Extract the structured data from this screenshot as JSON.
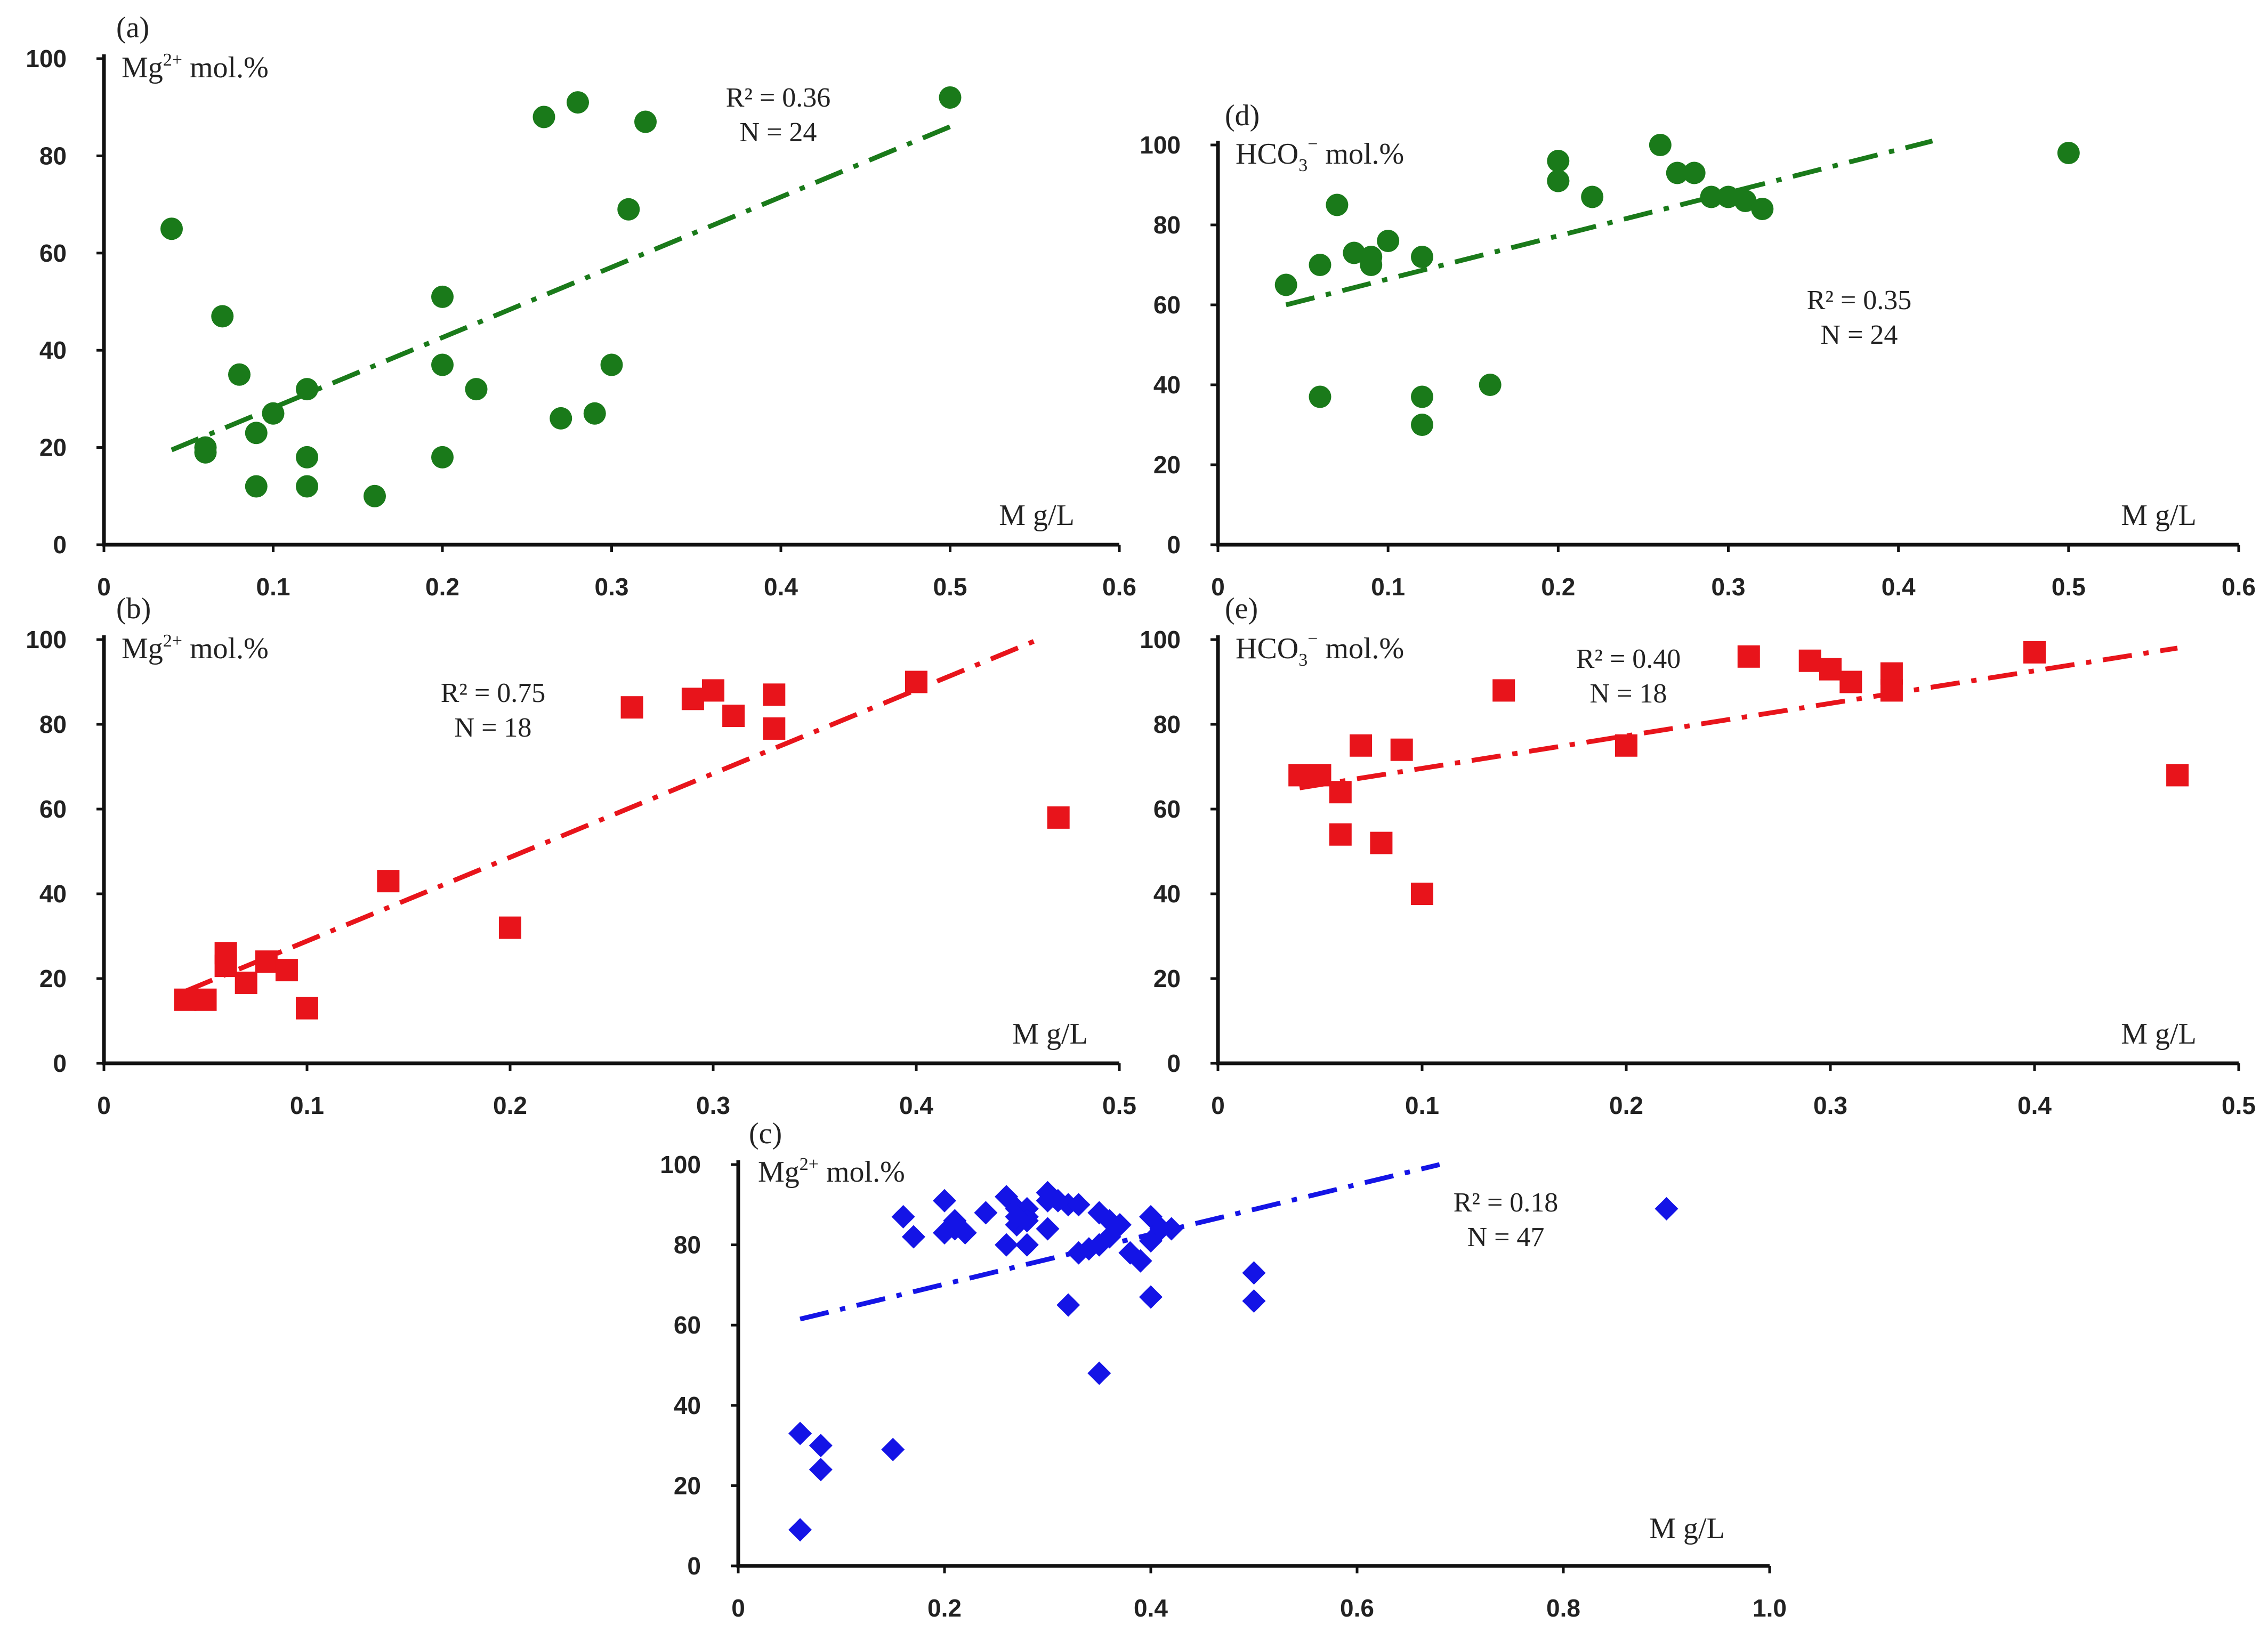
{
  "chart_data": [
    {
      "id": "a",
      "type": "scatter",
      "panel_label": "(a)",
      "ylabel": {
        "main": "Mg",
        "sup": "2+",
        "rest": " mol.%"
      },
      "xlabel": "M g/L",
      "xlim": [
        0,
        0.6
      ],
      "ylim": [
        0,
        100
      ],
      "xticks": [
        "0",
        "0.1",
        "0.2",
        "0.3",
        "0.4",
        "0.5",
        "0.6"
      ],
      "yticks": [
        "0",
        "20",
        "40",
        "60",
        "80",
        "100"
      ],
      "marker": "circle",
      "color": "#1a7a1a",
      "r2_text": "R² = 0.36",
      "n_text": "N = 24",
      "trend": {
        "x": [
          0.04,
          0.5
        ],
        "y": [
          19.5,
          86
        ]
      },
      "x": [
        0.04,
        0.06,
        0.06,
        0.07,
        0.08,
        0.09,
        0.09,
        0.1,
        0.12,
        0.12,
        0.12,
        0.16,
        0.2,
        0.2,
        0.2,
        0.22,
        0.26,
        0.27,
        0.28,
        0.29,
        0.3,
        0.31,
        0.32,
        0.5
      ],
      "y": [
        65,
        19,
        20,
        47,
        35,
        12,
        23,
        27,
        32,
        18,
        12,
        10,
        51,
        37,
        18,
        32,
        88,
        26,
        91,
        27,
        37,
        69,
        87,
        92
      ]
    },
    {
      "id": "b",
      "type": "scatter",
      "panel_label": "(b)",
      "ylabel": {
        "main": "Mg",
        "sup": "2+",
        "rest": " mol.%"
      },
      "xlabel": "M g/L",
      "xlim": [
        0,
        0.5
      ],
      "ylim": [
        0,
        100
      ],
      "xticks": [
        "0",
        "0.1",
        "0.2",
        "0.3",
        "0.4",
        "0.5"
      ],
      "yticks": [
        "0",
        "20",
        "40",
        "60",
        "80",
        "100"
      ],
      "marker": "square",
      "color": "#e8141b",
      "r2_text": "R² = 0.75",
      "n_text": "N = 18",
      "trend": {
        "x": [
          0.04,
          0.46
        ],
        "y": [
          17,
          100
        ]
      },
      "x": [
        0.04,
        0.05,
        0.06,
        0.06,
        0.07,
        0.08,
        0.09,
        0.1,
        0.14,
        0.2,
        0.26,
        0.29,
        0.3,
        0.31,
        0.33,
        0.33,
        0.4,
        0.47
      ],
      "y": [
        15,
        15,
        26,
        23,
        19,
        24,
        22,
        13,
        43,
        32,
        84,
        86,
        88,
        82,
        87,
        79,
        90,
        58
      ]
    },
    {
      "id": "c",
      "type": "scatter",
      "panel_label": "(c)",
      "ylabel": {
        "main": "Mg",
        "sup": "2+",
        "rest": " mol.%"
      },
      "xlabel": "M g/L",
      "xlim": [
        0,
        1.0
      ],
      "ylim": [
        0,
        100
      ],
      "xticks": [
        "0",
        "0.2",
        "0.4",
        "0.6",
        "0.8",
        "1.0"
      ],
      "yticks": [
        "0",
        "20",
        "40",
        "60",
        "80",
        "100"
      ],
      "marker": "diamond",
      "color": "#1414e6",
      "r2_text": "R² = 0.18",
      "n_text": "N = 47",
      "trend": {
        "x": [
          0.06,
          0.68
        ],
        "y": [
          61.5,
          100
        ]
      },
      "x": [
        0.06,
        0.06,
        0.08,
        0.08,
        0.15,
        0.16,
        0.17,
        0.2,
        0.2,
        0.21,
        0.21,
        0.22,
        0.24,
        0.26,
        0.26,
        0.27,
        0.27,
        0.28,
        0.28,
        0.28,
        0.3,
        0.3,
        0.31,
        0.32,
        0.32,
        0.33,
        0.33,
        0.34,
        0.35,
        0.35,
        0.35,
        0.36,
        0.36,
        0.37,
        0.38,
        0.39,
        0.4,
        0.4,
        0.4,
        0.41,
        0.42,
        0.5,
        0.5,
        0.9,
        0.28,
        0.3,
        0.27
      ],
      "y": [
        33,
        9,
        30,
        24,
        29,
        87,
        82,
        91,
        83,
        86,
        84,
        83,
        88,
        92,
        80,
        89,
        85,
        87,
        80,
        89,
        93,
        84,
        91,
        90,
        65,
        78,
        90,
        79,
        88,
        80,
        48,
        82,
        86,
        85,
        78,
        76,
        87,
        81,
        67,
        84,
        84,
        73,
        66,
        89,
        86,
        91,
        87
      ]
    },
    {
      "id": "d",
      "type": "scatter",
      "panel_label": "(d)",
      "ylabel": {
        "main": "HCO",
        "sub": "3",
        "sup": "−",
        "rest": " mol.%"
      },
      "xlabel": "M g/L",
      "xlim": [
        0,
        0.6
      ],
      "ylim": [
        0,
        100
      ],
      "xticks": [
        "0",
        "0.1",
        "0.2",
        "0.3",
        "0.4",
        "0.5",
        "0.6"
      ],
      "yticks": [
        "0",
        "20",
        "40",
        "60",
        "80",
        "100"
      ],
      "marker": "circle",
      "color": "#1a7a1a",
      "r2_text": "R² = 0.35",
      "n_text": "N = 24",
      "trend": {
        "x": [
          0.04,
          0.42
        ],
        "y": [
          60,
          101
        ]
      },
      "x": [
        0.04,
        0.06,
        0.06,
        0.07,
        0.08,
        0.09,
        0.09,
        0.1,
        0.12,
        0.12,
        0.12,
        0.16,
        0.2,
        0.2,
        0.2,
        0.22,
        0.26,
        0.27,
        0.28,
        0.29,
        0.3,
        0.31,
        0.32,
        0.5
      ],
      "y": [
        65,
        70,
        37,
        85,
        73,
        72,
        70,
        76,
        72,
        37,
        30,
        40,
        96,
        91,
        91,
        87,
        100,
        93,
        93,
        87,
        87,
        86,
        84,
        98
      ]
    },
    {
      "id": "e",
      "type": "scatter",
      "panel_label": "(e)",
      "ylabel": {
        "main": "HCO",
        "sub": "3",
        "sup": "−",
        "rest": " mol.%"
      },
      "xlabel": "M g/L",
      "xlim": [
        0,
        0.5
      ],
      "ylim": [
        0,
        100
      ],
      "xticks": [
        "0",
        "0.1",
        "0.2",
        "0.3",
        "0.4",
        "0.5"
      ],
      "yticks": [
        "0",
        "20",
        "40",
        "60",
        "80",
        "100"
      ],
      "marker": "square",
      "color": "#e8141b",
      "r2_text": "R² = 0.40",
      "n_text": "N = 18",
      "trend": {
        "x": [
          0.04,
          0.47
        ],
        "y": [
          65,
          98
        ]
      },
      "x": [
        0.04,
        0.05,
        0.06,
        0.06,
        0.07,
        0.08,
        0.09,
        0.1,
        0.14,
        0.2,
        0.26,
        0.29,
        0.3,
        0.31,
        0.33,
        0.33,
        0.4,
        0.47
      ],
      "y": [
        68,
        68,
        64,
        54,
        75,
        52,
        74,
        40,
        88,
        75,
        96,
        95,
        93,
        90,
        92,
        88,
        97,
        68
      ]
    }
  ]
}
